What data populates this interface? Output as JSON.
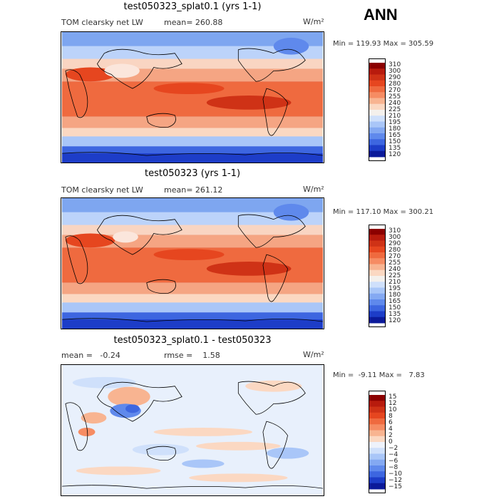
{
  "season_label": "ANN",
  "panels": [
    {
      "title": "test050323_splat0.1 (yrs 1-1)",
      "field_label": "TOM clearsky net LW",
      "stat_text": "mean= 260.88",
      "rmse_text": "",
      "units": "W/m²",
      "min_max": "Min = 119.93 Max = 305.59",
      "colorbar": {
        "labels": [
          "310",
          "300",
          "290",
          "280",
          "270",
          "255",
          "240",
          "225",
          "210",
          "195",
          "180",
          "165",
          "150",
          "135",
          "120"
        ],
        "colors": [
          "#8b0000",
          "#b81b0d",
          "#cf3216",
          "#e6461f",
          "#ef6a3f",
          "#f68c63",
          "#f8b491",
          "#fbd8c2",
          "#f4f0ec",
          "#cfe0fb",
          "#a9c6f8",
          "#84a9f2",
          "#5f89ec",
          "#3d66e0",
          "#1d3dc8",
          "#0b1a9a"
        ]
      }
    },
    {
      "title": "test050323 (yrs 1-1)",
      "field_label": "TOM clearsky net LW",
      "stat_text": "mean= 261.12",
      "rmse_text": "",
      "units": "W/m²",
      "min_max": "Min = 117.10 Max = 300.21",
      "colorbar": {
        "labels": [
          "310",
          "300",
          "290",
          "280",
          "270",
          "255",
          "240",
          "225",
          "210",
          "195",
          "180",
          "165",
          "150",
          "135",
          "120"
        ],
        "colors": [
          "#8b0000",
          "#b81b0d",
          "#cf3216",
          "#e6461f",
          "#ef6a3f",
          "#f68c63",
          "#f8b491",
          "#fbd8c2",
          "#f4f0ec",
          "#cfe0fb",
          "#a9c6f8",
          "#84a9f2",
          "#5f89ec",
          "#3d66e0",
          "#1d3dc8",
          "#0b1a9a"
        ]
      }
    },
    {
      "title": "test050323_splat0.1 - test050323",
      "field_label": "",
      "stat_text": "mean =   -0.24",
      "rmse_text": "rmse =    1.58",
      "units": "W/m²",
      "min_max": "Min =  -9.11 Max =   7.83",
      "colorbar": {
        "labels": [
          "15",
          "12",
          "10",
          "8",
          "6",
          "4",
          "2",
          "0",
          "−2",
          "−4",
          "−6",
          "−8",
          "−10",
          "−12",
          "−15"
        ],
        "colors": [
          "#8b0000",
          "#b81b0d",
          "#cf3216",
          "#e6461f",
          "#ef6a3f",
          "#f68c63",
          "#f8b491",
          "#fbd8c2",
          "#eef2fb",
          "#cfe0fb",
          "#a9c6f8",
          "#84a9f2",
          "#5f89ec",
          "#3d66e0",
          "#1d3dc8",
          "#0b1a9a"
        ]
      }
    }
  ]
}
